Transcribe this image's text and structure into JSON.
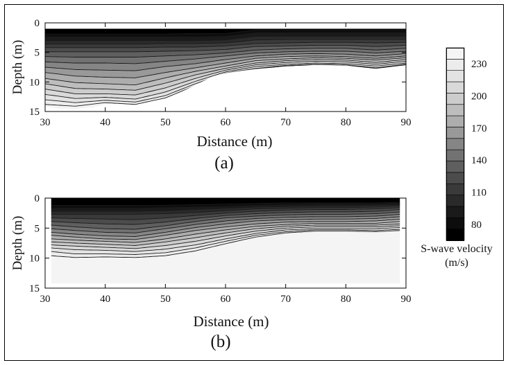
{
  "chart_data": [
    {
      "type": "heatmap",
      "panel_label": "(a)",
      "xlabel": "Distance (m)",
      "ylabel": "Depth (m)",
      "xlim": [
        30,
        90
      ],
      "ylim": [
        0,
        15
      ],
      "y_inverted": true,
      "xticks": [
        "30",
        "40",
        "50",
        "60",
        "70",
        "80",
        "90"
      ],
      "yticks": [
        "0",
        "5",
        "10",
        "15"
      ],
      "data_extent": {
        "x": [
          30,
          90
        ],
        "y_top": 1
      },
      "bottom_boundary": {
        "x": [
          30,
          32,
          35,
          38,
          40,
          42,
          45,
          48,
          50,
          52,
          55,
          58,
          60,
          62,
          65,
          70,
          75,
          80,
          85,
          90
        ],
        "depth": [
          14.2,
          14.5,
          14.6,
          14.3,
          13.8,
          13.7,
          13.9,
          13.2,
          12.8,
          12.0,
          10.5,
          9.0,
          8.5,
          8.2,
          7.8,
          7.4,
          7.1,
          7.2,
          7.8,
          7.2
        ]
      },
      "contour_velocity_levels": [
        80,
        90,
        100,
        110,
        120,
        130,
        140,
        150,
        160,
        170,
        180,
        190,
        200,
        210,
        220,
        230,
        240
      ],
      "contour_depths": {
        "x": [
          30,
          35,
          40,
          45,
          50,
          55,
          60,
          65,
          70,
          75,
          80,
          85,
          90
        ],
        "levels": [
          [
            1.9,
            1.9,
            1.9,
            1.9,
            1.9,
            1.8,
            1.8,
            1.2,
            1.2,
            1.2,
            1.2,
            1.2,
            1.2
          ],
          [
            2.4,
            2.4,
            2.4,
            2.4,
            2.4,
            2.4,
            2.3,
            1.7,
            1.7,
            1.7,
            1.7,
            1.7,
            1.7
          ],
          [
            3.0,
            3.0,
            3.0,
            3.0,
            3.0,
            3.0,
            2.9,
            2.3,
            2.3,
            2.3,
            2.3,
            2.3,
            2.3
          ],
          [
            3.6,
            3.6,
            3.6,
            3.6,
            3.5,
            3.5,
            3.4,
            2.9,
            2.8,
            2.8,
            2.8,
            2.8,
            2.8
          ],
          [
            4.2,
            4.2,
            4.2,
            4.2,
            4.1,
            4.1,
            3.9,
            3.5,
            3.4,
            3.3,
            3.3,
            3.4,
            3.3
          ],
          [
            4.9,
            4.9,
            4.9,
            4.9,
            4.8,
            4.7,
            4.5,
            4.0,
            3.9,
            3.8,
            3.8,
            4.0,
            3.8
          ],
          [
            5.7,
            5.8,
            5.8,
            5.8,
            5.6,
            5.4,
            5.1,
            4.6,
            4.4,
            4.3,
            4.3,
            4.6,
            4.3
          ],
          [
            6.6,
            6.8,
            6.8,
            6.9,
            6.5,
            6.1,
            5.6,
            5.1,
            4.9,
            4.8,
            4.8,
            5.1,
            4.8
          ],
          [
            7.5,
            7.9,
            8.0,
            8.1,
            7.4,
            6.9,
            6.2,
            5.6,
            5.3,
            5.2,
            5.3,
            5.6,
            5.2
          ],
          [
            8.4,
            9.0,
            9.2,
            9.3,
            8.4,
            7.6,
            6.8,
            6.0,
            5.7,
            5.6,
            5.7,
            6.0,
            5.6
          ],
          [
            9.4,
            10.1,
            10.3,
            10.5,
            9.3,
            8.2,
            7.3,
            6.4,
            6.1,
            5.9,
            6.0,
            6.3,
            5.9
          ],
          [
            10.3,
            11.1,
            11.2,
            11.4,
            10.2,
            8.8,
            7.7,
            6.8,
            6.4,
            6.2,
            6.3,
            6.7,
            6.2
          ],
          [
            11.2,
            12.0,
            12.0,
            12.2,
            11.0,
            9.4,
            8.0,
            7.1,
            6.7,
            6.5,
            6.6,
            7.0,
            6.5
          ],
          [
            12.1,
            12.8,
            12.6,
            12.9,
            11.7,
            9.9,
            8.3,
            7.4,
            7.0,
            6.8,
            6.9,
            7.3,
            6.8
          ],
          [
            13.0,
            13.5,
            13.1,
            13.4,
            12.3,
            10.3,
            8.5,
            7.7,
            7.2,
            7.0,
            7.1,
            7.6,
            7.0
          ],
          [
            13.8,
            14.1,
            13.5,
            13.8,
            12.7,
            10.6,
            8.6,
            7.8,
            7.3,
            7.1,
            7.2,
            7.7,
            7.1
          ]
        ]
      }
    },
    {
      "type": "heatmap",
      "panel_label": "(b)",
      "xlabel": "Distance (m)",
      "ylabel": "Depth (m)",
      "xlim": [
        30,
        90
      ],
      "ylim": [
        0,
        15
      ],
      "y_inverted": true,
      "xticks": [
        "30",
        "40",
        "50",
        "60",
        "70",
        "80",
        "90"
      ],
      "yticks": [
        "0",
        "5",
        "10",
        "15"
      ],
      "data_extent": {
        "x": [
          31,
          89
        ],
        "y_top": 0
      },
      "bottom_boundary": {
        "x": [
          31,
          33,
          35,
          37,
          40,
          45,
          50,
          52,
          55,
          58,
          60,
          65,
          70,
          75,
          80,
          85,
          89
        ],
        "depth": [
          14.2,
          14.2,
          14.2,
          14.2,
          14.2,
          14.2,
          14.2,
          14.2,
          14.2,
          14.2,
          14.2,
          14.2,
          14.2,
          14.2,
          14.2,
          14.2,
          14.2
        ]
      },
      "contour_velocity_levels": [
        80,
        90,
        100,
        110,
        120,
        130,
        140,
        150,
        160,
        170,
        180,
        190,
        200,
        210,
        220,
        230,
        240
      ],
      "contour_depths": {
        "x": [
          31,
          35,
          40,
          45,
          50,
          55,
          60,
          65,
          70,
          75,
          80,
          85,
          89
        ],
        "levels": [
          [
            1.2,
            1.2,
            1.2,
            1.2,
            1.2,
            1.1,
            1.0,
            0.9,
            0.8,
            0.8,
            0.8,
            0.8,
            0.7
          ],
          [
            1.7,
            1.7,
            1.7,
            1.7,
            1.6,
            1.5,
            1.4,
            1.2,
            1.1,
            1.0,
            1.0,
            1.0,
            0.9
          ],
          [
            2.2,
            2.2,
            2.2,
            2.2,
            2.1,
            1.9,
            1.7,
            1.5,
            1.4,
            1.3,
            1.3,
            1.2,
            1.1
          ],
          [
            2.7,
            2.7,
            2.7,
            2.7,
            2.6,
            2.4,
            2.1,
            1.8,
            1.7,
            1.6,
            1.6,
            1.5,
            1.3
          ],
          [
            3.3,
            3.4,
            3.5,
            3.6,
            3.3,
            2.9,
            2.5,
            2.2,
            2.0,
            1.9,
            1.9,
            1.8,
            1.6
          ],
          [
            3.9,
            4.1,
            4.3,
            4.4,
            4.0,
            3.4,
            2.9,
            2.6,
            2.4,
            2.3,
            2.3,
            2.2,
            1.9
          ],
          [
            4.5,
            4.8,
            5.1,
            5.2,
            4.6,
            3.9,
            3.3,
            3.0,
            2.8,
            2.7,
            2.7,
            2.6,
            2.3
          ],
          [
            5.1,
            5.4,
            5.7,
            5.8,
            5.1,
            4.4,
            3.8,
            3.4,
            3.2,
            3.1,
            3.1,
            3.0,
            2.7
          ],
          [
            5.7,
            6.0,
            6.3,
            6.4,
            5.7,
            4.9,
            4.3,
            3.8,
            3.6,
            3.5,
            3.5,
            3.4,
            3.1
          ],
          [
            6.2,
            6.5,
            6.8,
            6.9,
            6.2,
            5.4,
            4.8,
            4.3,
            4.0,
            3.9,
            3.9,
            3.8,
            3.5
          ],
          [
            6.8,
            7.0,
            7.2,
            7.4,
            6.8,
            6.0,
            5.3,
            4.7,
            4.4,
            4.2,
            4.2,
            4.2,
            3.9
          ],
          [
            7.3,
            7.5,
            7.7,
            7.9,
            7.3,
            6.6,
            5.8,
            5.1,
            4.7,
            4.5,
            4.5,
            4.5,
            4.3
          ],
          [
            7.8,
            8.0,
            8.2,
            8.4,
            7.9,
            7.2,
            6.3,
            5.5,
            5.0,
            4.8,
            4.8,
            4.8,
            4.6
          ],
          [
            8.3,
            8.6,
            8.7,
            8.9,
            8.5,
            7.8,
            6.8,
            5.9,
            5.3,
            5.1,
            5.1,
            5.1,
            4.9
          ],
          [
            8.9,
            9.3,
            9.3,
            9.4,
            9.1,
            8.3,
            7.2,
            6.2,
            5.6,
            5.3,
            5.3,
            5.4,
            5.2
          ],
          [
            9.6,
            9.9,
            9.8,
            9.9,
            9.6,
            8.8,
            7.6,
            6.5,
            5.8,
            5.5,
            5.5,
            5.6,
            5.4
          ]
        ]
      }
    }
  ],
  "colorbar": {
    "ticks": [
      "230",
      "200",
      "170",
      "140",
      "110",
      "80"
    ],
    "tick_values": [
      230,
      200,
      170,
      140,
      110,
      80
    ],
    "range": [
      65,
      245
    ],
    "label_line1": "S-wave velocity",
    "label_line2": "(m/s)"
  },
  "colors": {
    "background": "#ffffff",
    "frame": "#000000",
    "contour_line": "#1a1a1a",
    "scale": [
      "#000000",
      "#0d0d0d",
      "#1a1a1a",
      "#2a2a2a",
      "#3a3a3a",
      "#4c4c4c",
      "#5f5f5f",
      "#727272",
      "#858585",
      "#999999",
      "#adadad",
      "#bdbdbd",
      "#cccccc",
      "#d9d9d9",
      "#e3e3e3",
      "#ececec",
      "#f4f4f4"
    ]
  }
}
